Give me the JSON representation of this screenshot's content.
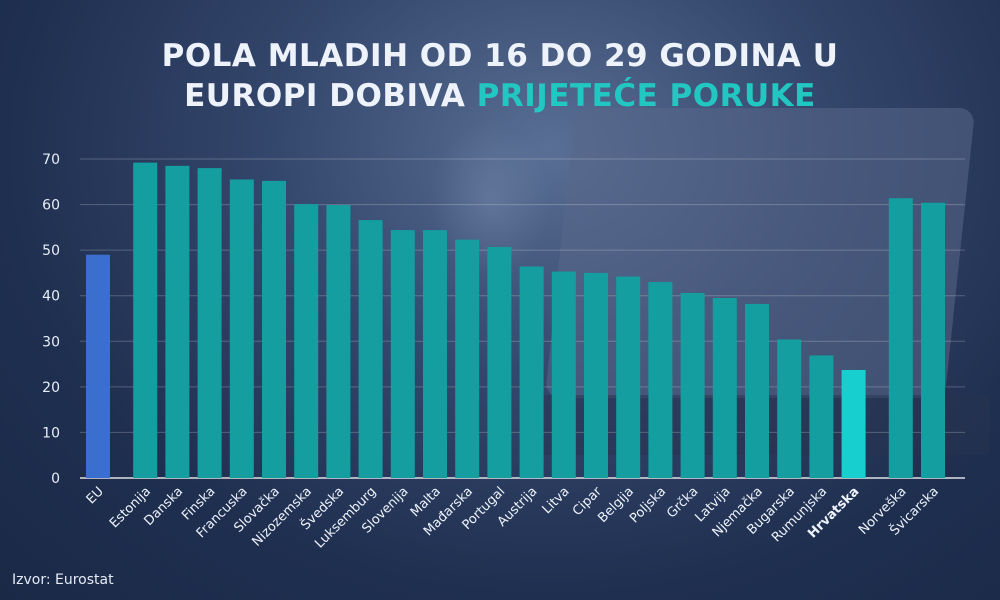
{
  "title": {
    "line1": "POLA MLADIH OD 16 DO 29 GODINA U",
    "line2_plain": "EUROPI DOBIVA",
    "line2_accent": "PRIJETEĆE PORUKE"
  },
  "source": "Izvor: Eurostat",
  "colors": {
    "eu_bar": "#3a6fd0",
    "bar": "#149e9f",
    "highlight_bar": "#18cfcf",
    "accent_text": "#22c7c2"
  },
  "chart_data": {
    "type": "bar",
    "title": "",
    "xlabel": "",
    "ylabel": "",
    "ylim": [
      0,
      70
    ],
    "yticks": [
      0,
      10,
      20,
      30,
      40,
      50,
      60,
      70
    ],
    "grid": true,
    "categories": [
      "EU",
      "Estonija",
      "Danska",
      "Finska",
      "Francuska",
      "Slovačka",
      "Nizozemska",
      "Švedska",
      "Luksemburg",
      "Slovenija",
      "Malta",
      "Mađarska",
      "Portugal",
      "Austrija",
      "Litva",
      "Cipar",
      "Belgija",
      "Poljska",
      "Grčka",
      "Latvija",
      "Njemačka",
      "Bugarska",
      "Rumunjska",
      "Hrvatska",
      "Norveška",
      "Švicarska"
    ],
    "values": [
      49,
      69.2,
      68.5,
      68,
      65.5,
      65.2,
      60.1,
      59.9,
      56.6,
      54.4,
      54.4,
      52.3,
      50.7,
      46.4,
      45.3,
      45,
      44.2,
      43,
      40.6,
      39.5,
      38.2,
      30.4,
      26.9,
      23.7,
      61.4,
      60.4
    ],
    "highlight": "Hrvatska",
    "reference": "EU"
  }
}
